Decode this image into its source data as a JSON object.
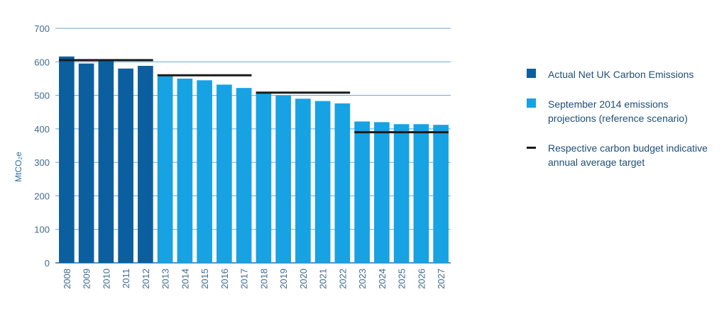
{
  "chart_data": {
    "type": "bar",
    "categories": [
      "2008",
      "2009",
      "2010",
      "2011",
      "2012",
      "2013",
      "2014",
      "2015",
      "2016",
      "2017",
      "2018",
      "2019",
      "2020",
      "2021",
      "2022",
      "2023",
      "2024",
      "2025",
      "2026",
      "2027"
    ],
    "series": [
      {
        "name": "Actual Net UK Carbon Emissions",
        "color": "#0b5f9e",
        "values": [
          616,
          595,
          605,
          580,
          588,
          null,
          null,
          null,
          null,
          null,
          null,
          null,
          null,
          null,
          null,
          null,
          null,
          null,
          null,
          null
        ]
      },
      {
        "name": "September 2014 emissions projections (reference scenario)",
        "color": "#17a2e3",
        "values": [
          null,
          null,
          null,
          null,
          null,
          557,
          550,
          545,
          532,
          522,
          508,
          500,
          490,
          483,
          476,
          422,
          420,
          414,
          414,
          412
        ]
      }
    ],
    "budget_targets": {
      "name": "Respective carbon budget indicative annual average target",
      "color": "#1a1a1a",
      "segments": [
        {
          "from": "2008",
          "to": "2012",
          "value": 605
        },
        {
          "from": "2013",
          "to": "2017",
          "value": 560
        },
        {
          "from": "2018",
          "to": "2022",
          "value": 508
        },
        {
          "from": "2023",
          "to": "2027",
          "value": 390
        }
      ]
    },
    "ylabel": "MtCO₂e",
    "ylim": [
      0,
      700
    ],
    "yticks": [
      0,
      100,
      200,
      300,
      400,
      500,
      600,
      700
    ],
    "grid": true,
    "legend_position": "right"
  },
  "legend": [
    {
      "type": "swatch",
      "color": "#0b5f9e",
      "label": "Actual Net UK Carbon Emissions"
    },
    {
      "type": "swatch",
      "color": "#17a2e3",
      "label": "September 2014 emissions projections (reference scenario)"
    },
    {
      "type": "line",
      "color": "#1a1a1a",
      "label": "Respective carbon budget indicative annual average target"
    }
  ]
}
